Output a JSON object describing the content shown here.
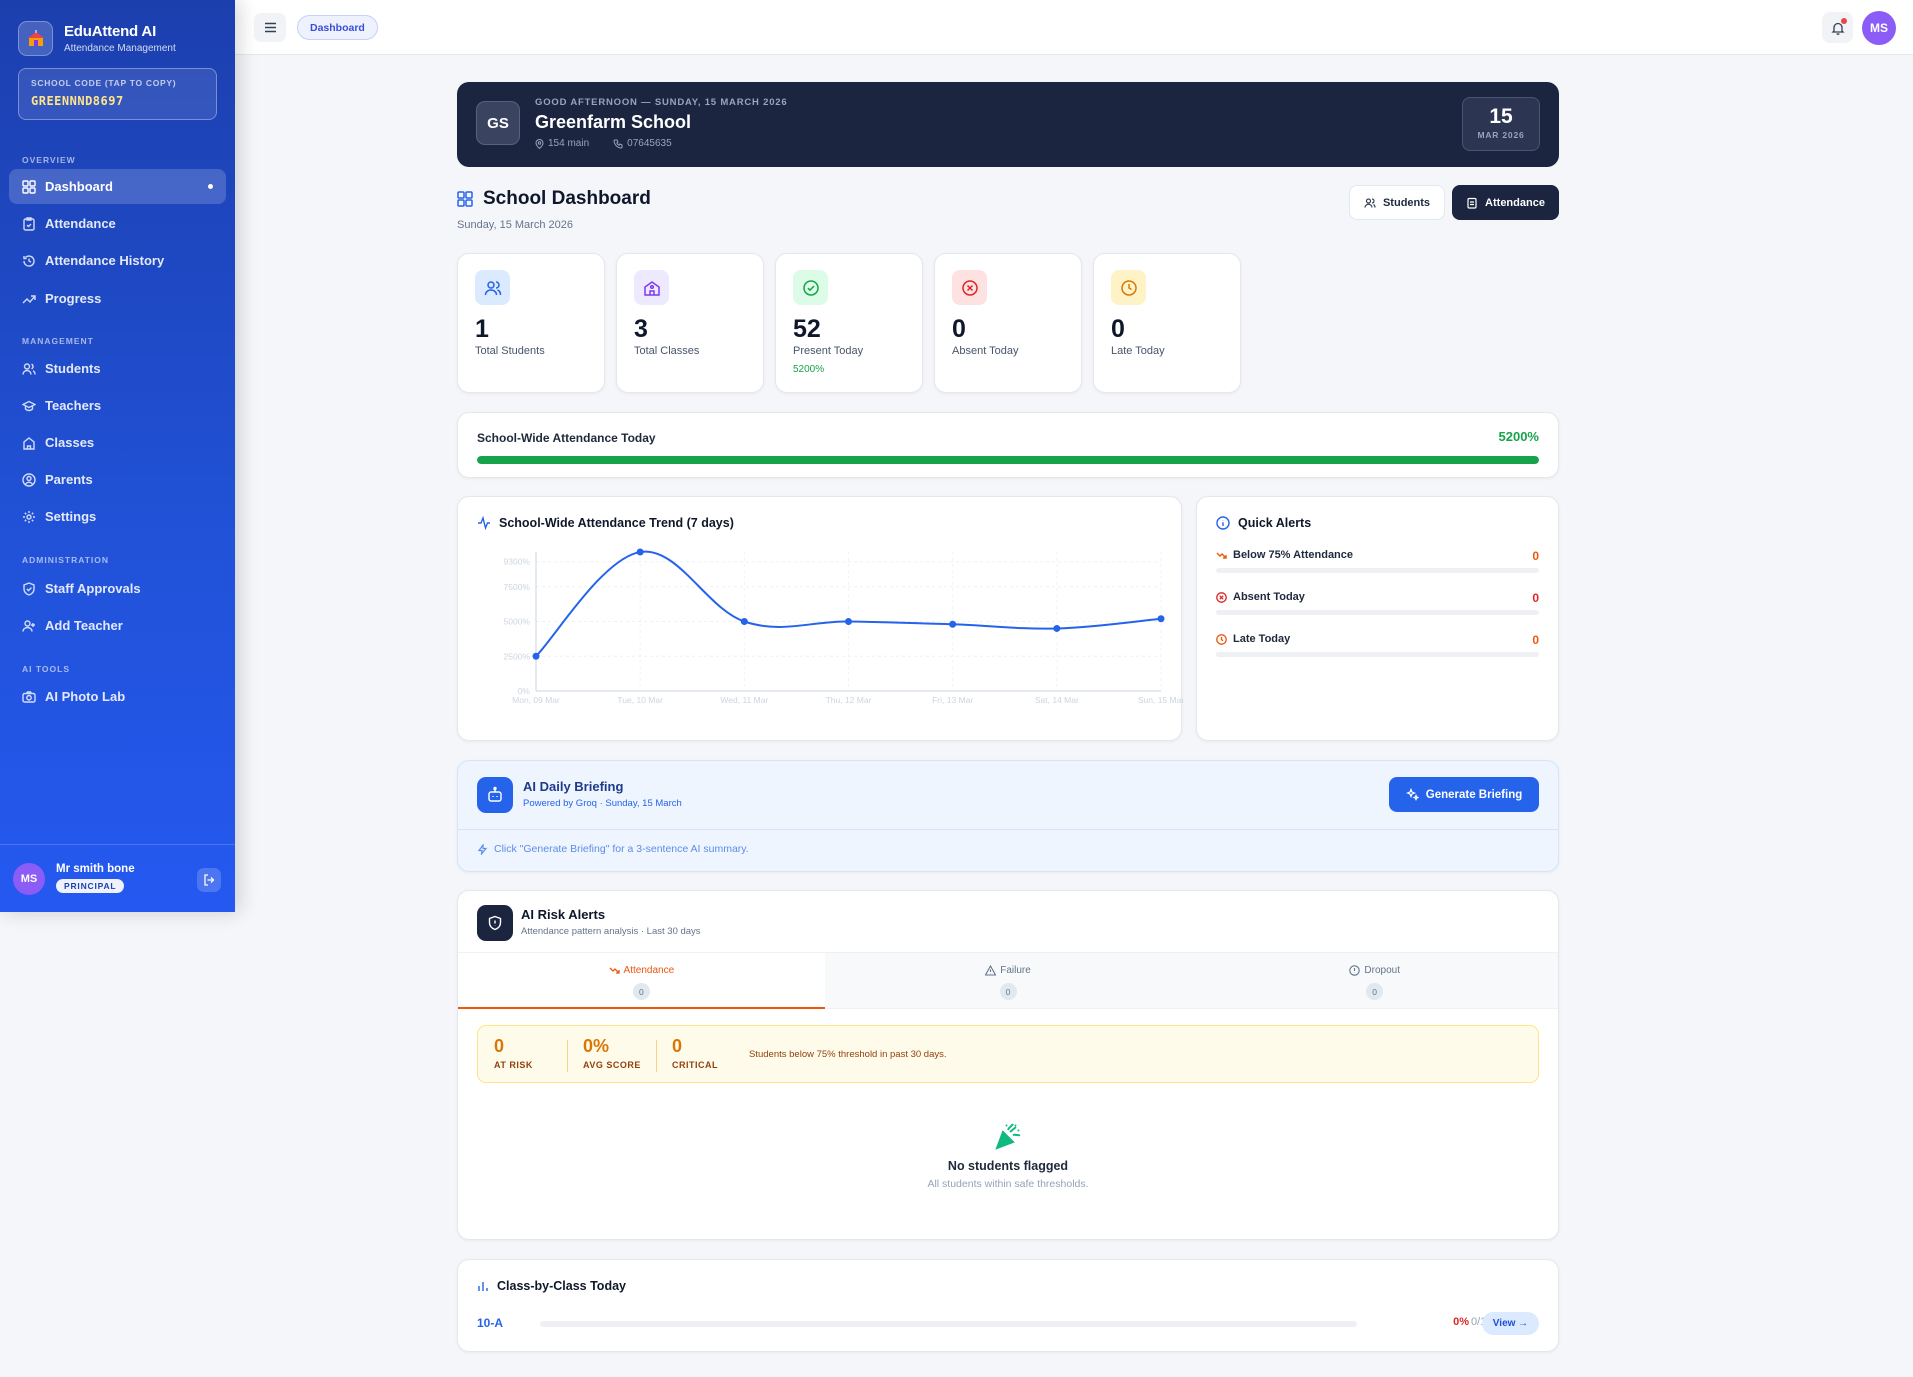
{
  "sidebar": {
    "brand_name": "EduAttend AI",
    "brand_sub": "Attendance Management",
    "code_label": "SCHOOL CODE (TAP TO COPY)",
    "code_value": "GREENNND8697",
    "sections": {
      "overview": "OVERVIEW",
      "management": "MANAGEMENT",
      "administration": "ADMINISTRATION",
      "ai_tools": "AI TOOLS"
    },
    "items": {
      "dashboard": "Dashboard",
      "attendance": "Attendance",
      "attendance_history": "Attendance History",
      "progress": "Progress",
      "students": "Students",
      "teachers": "Teachers",
      "classes": "Classes",
      "parents": "Parents",
      "settings": "Settings",
      "staff_approvals": "Staff Approvals",
      "add_teacher": "Add Teacher",
      "ai_photo_lab": "AI Photo Lab"
    },
    "user": {
      "initials": "MS",
      "name": "Mr smith bone",
      "role": "PRINCIPAL"
    }
  },
  "topbar": {
    "breadcrumb": "Dashboard",
    "avatar_initials": "MS"
  },
  "hero": {
    "initials": "GS",
    "greeting": "GOOD AFTERNOON — SUNDAY, 15 MARCH 2026",
    "school_name": "Greenfarm School",
    "address": "154 main",
    "phone": "07645635",
    "day": "15",
    "month_year": "MAR 2026"
  },
  "dashboard": {
    "title": "School Dashboard",
    "date": "Sunday, 15 March 2026",
    "students_button": "Students",
    "attendance_button": "Attendance"
  },
  "stats": {
    "total_students": {
      "value": "1",
      "label": "Total Students"
    },
    "total_classes": {
      "value": "3",
      "label": "Total Classes"
    },
    "present_today": {
      "value": "52",
      "label": "Present Today",
      "sub": "5200%"
    },
    "absent_today": {
      "value": "0",
      "label": "Absent Today"
    },
    "late_today": {
      "value": "0",
      "label": "Late Today"
    }
  },
  "school_wide": {
    "title": "School-Wide Attendance Today",
    "value": "5200%",
    "fill_fraction": 1.0
  },
  "trend": {
    "title": "School-Wide Attendance Trend (7 days)"
  },
  "chart_data": {
    "type": "line",
    "title": "School-Wide Attendance Trend (7 days)",
    "categories": [
      "Mon, 09 Mar",
      "Tue, 10 Mar",
      "Wed, 11 Mar",
      "Thu, 12 Mar",
      "Fri, 13 Mar",
      "Sat, 14 Mar",
      "Sun, 15 Mar"
    ],
    "values": [
      2500,
      10000,
      5000,
      5000,
      4800,
      4500,
      5200
    ],
    "y_ticks": [
      0,
      2500,
      5000,
      7500,
      9300
    ],
    "y_tick_labels": [
      "0%",
      "2500%",
      "5000%",
      "7500%",
      "9300%"
    ],
    "ylim": [
      0,
      10000
    ],
    "grid": true,
    "color": "#2563eb"
  },
  "alerts": {
    "title": "Quick Alerts",
    "items": [
      {
        "label": "Below 75% Attendance",
        "value": "0",
        "color": "#ea580c"
      },
      {
        "label": "Absent Today",
        "value": "0",
        "color": "#dc2626"
      },
      {
        "label": "Late Today",
        "value": "0",
        "color": "#ea580c"
      }
    ]
  },
  "briefing": {
    "title": "AI Daily Briefing",
    "subtitle": "Powered by Groq · Sunday, 15 March",
    "button": "Generate Briefing",
    "hint": "Click \"Generate Briefing\" for a 3-sentence AI summary."
  },
  "risk": {
    "title": "AI Risk Alerts",
    "subtitle": "Attendance pattern analysis · Last 30 days",
    "tabs": [
      {
        "label": "Attendance",
        "count": "0"
      },
      {
        "label": "Failure",
        "count": "0"
      },
      {
        "label": "Dropout",
        "count": "0"
      }
    ],
    "summary": {
      "at_risk": {
        "value": "0",
        "label": "AT RISK"
      },
      "avg_score": {
        "value": "0%",
        "label": "AVG SCORE"
      },
      "critical": {
        "value": "0",
        "label": "CRITICAL"
      },
      "note": "Students below 75% threshold in past 30 days."
    },
    "empty_title": "No students flagged",
    "empty_sub": "All students within safe thresholds."
  },
  "classes": {
    "title": "Class-by-Class Today",
    "rows": [
      {
        "name": "10-A",
        "percent": "0%",
        "count": "0/1",
        "view": "View →"
      }
    ]
  }
}
